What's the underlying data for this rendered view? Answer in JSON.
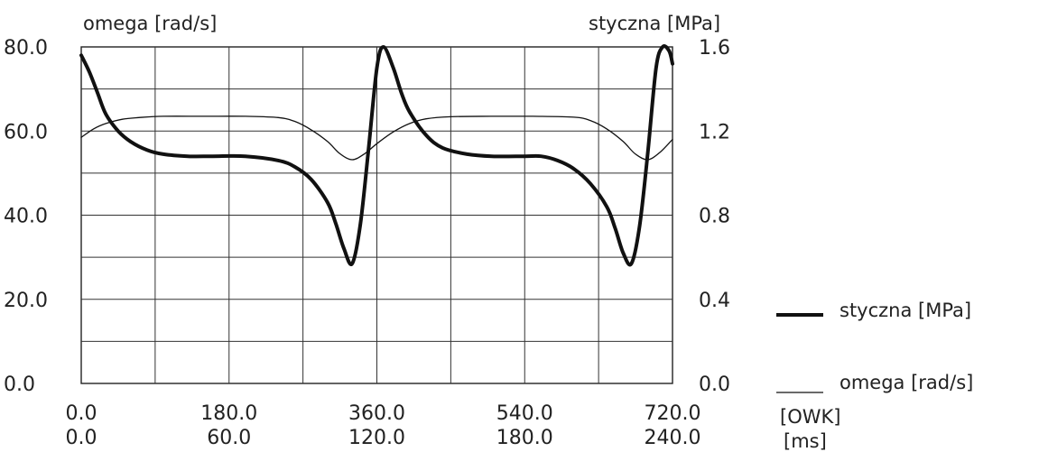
{
  "chart_data": {
    "type": "line",
    "y_left": {
      "title": "omega [rad/s]",
      "range": [
        0,
        80
      ],
      "tick_labels": [
        "0.0",
        "20.0",
        "40.0",
        "60.0",
        "80.0"
      ]
    },
    "y_right": {
      "title": "styczna [MPa]",
      "range": [
        0,
        1.6
      ],
      "tick_labels": [
        "0.0",
        "0.4",
        "0.8",
        "1.2",
        "1.6"
      ]
    },
    "x_primary": {
      "title": "[OWK]",
      "range": [
        0,
        720
      ],
      "tick_labels": [
        "0.0",
        "180.0",
        "360.0",
        "540.0",
        "720.0"
      ]
    },
    "x_secondary": {
      "title": "[ms]",
      "range": [
        0,
        240
      ],
      "tick_labels": [
        "0.0",
        "60.0",
        "120.0",
        "180.0",
        "240.0"
      ]
    },
    "grid": true,
    "legend_position": "right",
    "series": [
      {
        "name": "styczna [MPa]",
        "axis": "right",
        "line_weight": "thick",
        "x": [
          0,
          10,
          20,
          30,
          45,
          60,
          80,
          100,
          130,
          160,
          200,
          240,
          260,
          280,
          300,
          310,
          320,
          330,
          340,
          350,
          360,
          368,
          380,
          390,
          400,
          420,
          440,
          470,
          500,
          540,
          560,
          580,
          600,
          620,
          640,
          650,
          660,
          670,
          680,
          690,
          700,
          708,
          716,
          720
        ],
        "y": [
          1.56,
          1.48,
          1.38,
          1.28,
          1.2,
          1.15,
          1.11,
          1.09,
          1.08,
          1.08,
          1.08,
          1.06,
          1.03,
          0.97,
          0.86,
          0.76,
          0.64,
          0.57,
          0.76,
          1.12,
          1.5,
          1.6,
          1.5,
          1.38,
          1.29,
          1.18,
          1.12,
          1.09,
          1.08,
          1.08,
          1.08,
          1.06,
          1.02,
          0.95,
          0.84,
          0.74,
          0.62,
          0.57,
          0.75,
          1.1,
          1.5,
          1.6,
          1.58,
          1.52
        ]
      },
      {
        "name": "omega [rad/s]",
        "axis": "left",
        "line_weight": "thin",
        "x": [
          0,
          15,
          30,
          50,
          70,
          100,
          150,
          200,
          240,
          260,
          280,
          300,
          315,
          330,
          345,
          360,
          380,
          400,
          420,
          450,
          500,
          550,
          600,
          620,
          640,
          660,
          675,
          690,
          705,
          720
        ],
        "y": [
          58.5,
          60.5,
          61.8,
          62.8,
          63.2,
          63.5,
          63.5,
          63.5,
          63.2,
          62.3,
          60.3,
          57.5,
          54.6,
          53.2,
          54.6,
          57.0,
          59.8,
          61.8,
          62.9,
          63.4,
          63.5,
          63.5,
          63.3,
          62.5,
          60.5,
          57.5,
          54.5,
          53.2,
          55.0,
          58.0
        ]
      }
    ]
  }
}
